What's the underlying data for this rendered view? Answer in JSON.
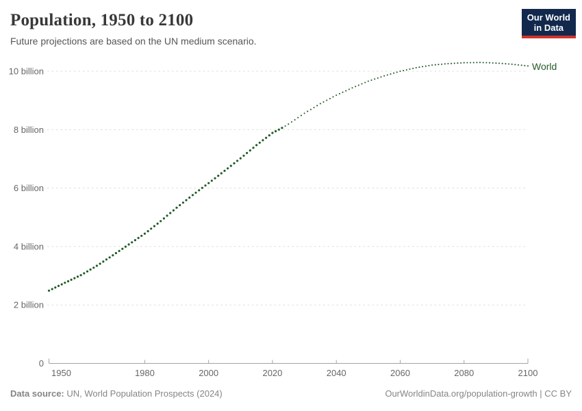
{
  "header": {
    "title": "Population, 1950 to 2100",
    "subtitle": "Future projections are based on the UN medium scenario.",
    "logo": {
      "line1": "Our World",
      "line2": "in Data",
      "bg_color": "#12294d",
      "accent_color": "#d0342c"
    }
  },
  "chart_data": {
    "type": "line",
    "title": "Population, 1950 to 2100",
    "subtitle": "Future projections are based on the UN medium scenario.",
    "xlabel": "",
    "ylabel": "",
    "unit": "billion people",
    "xlim": [
      1950,
      2100
    ],
    "ylim": [
      0,
      10.7
    ],
    "grid": "horizontal-dashed",
    "legend_position": "end-of-line",
    "x_ticks": [
      1950,
      1980,
      2000,
      2020,
      2040,
      2060,
      2080,
      2100
    ],
    "y_ticks": [
      {
        "value": 0,
        "label": "0"
      },
      {
        "value": 2,
        "label": "2 billion"
      },
      {
        "value": 4,
        "label": "4 billion"
      },
      {
        "value": 6,
        "label": "6 billion"
      },
      {
        "value": 8,
        "label": "8 billion"
      },
      {
        "value": 10,
        "label": "10 billion"
      }
    ],
    "projection_start_year": 2023,
    "projection_note": "dotted after 2023 (UN medium scenario)",
    "series": [
      {
        "name": "World",
        "color": "#235b28",
        "points": [
          {
            "year": 1950,
            "value": 2.49
          },
          {
            "year": 1955,
            "value": 2.76
          },
          {
            "year": 1960,
            "value": 3.02
          },
          {
            "year": 1965,
            "value": 3.34
          },
          {
            "year": 1970,
            "value": 3.7
          },
          {
            "year": 1975,
            "value": 4.07
          },
          {
            "year": 1980,
            "value": 4.44
          },
          {
            "year": 1985,
            "value": 4.87
          },
          {
            "year": 1990,
            "value": 5.33
          },
          {
            "year": 1995,
            "value": 5.76
          },
          {
            "year": 2000,
            "value": 6.17
          },
          {
            "year": 2005,
            "value": 6.59
          },
          {
            "year": 2010,
            "value": 7.02
          },
          {
            "year": 2015,
            "value": 7.47
          },
          {
            "year": 2020,
            "value": 7.89
          },
          {
            "year": 2023,
            "value": 8.06
          },
          {
            "year": 2025,
            "value": 8.19
          },
          {
            "year": 2030,
            "value": 8.56
          },
          {
            "year": 2035,
            "value": 8.89
          },
          {
            "year": 2040,
            "value": 9.18
          },
          {
            "year": 2045,
            "value": 9.43
          },
          {
            "year": 2050,
            "value": 9.66
          },
          {
            "year": 2055,
            "value": 9.84
          },
          {
            "year": 2060,
            "value": 10.0
          },
          {
            "year": 2065,
            "value": 10.12
          },
          {
            "year": 2070,
            "value": 10.21
          },
          {
            "year": 2075,
            "value": 10.26
          },
          {
            "year": 2080,
            "value": 10.29
          },
          {
            "year": 2085,
            "value": 10.3
          },
          {
            "year": 2090,
            "value": 10.28
          },
          {
            "year": 2095,
            "value": 10.24
          },
          {
            "year": 2100,
            "value": 10.18
          }
        ]
      }
    ]
  },
  "footer": {
    "source_label": "Data source:",
    "source_text": " UN, World Population Prospects (2024)",
    "link_text": "OurWorldinData.org/population-growth | CC BY"
  }
}
